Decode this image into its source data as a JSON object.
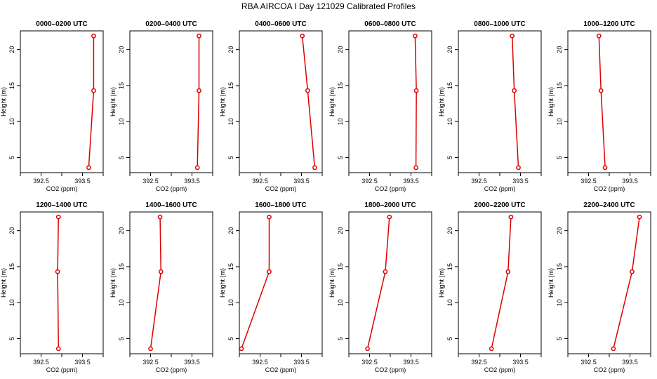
{
  "title": "RBA AIRCOA I  Day 121029  Calibrated Profiles",
  "chart_data": {
    "type": "line",
    "xlabel": "CO2 (ppm)",
    "ylabel": "Height (m)",
    "x_ticks": [
      "392.5",
      "393.5"
    ],
    "y_ticks": [
      "5",
      "10",
      "15",
      "20"
    ],
    "xlim": [
      392.0,
      394.0
    ],
    "ylim": [
      2.9,
      22.6
    ],
    "heights": [
      3.6,
      14.3,
      21.9
    ],
    "line_color": "#dd0000",
    "grid": false,
    "legend": "none",
    "panels": [
      {
        "title": "0000–0200 UTC",
        "xlim": [
          392.0,
          394.0
        ],
        "co2": [
          393.65,
          393.77,
          393.77
        ]
      },
      {
        "title": "0200–0400 UTC",
        "xlim": [
          392.0,
          394.0
        ],
        "co2": [
          393.63,
          393.67,
          393.67
        ]
      },
      {
        "title": "0400–0600 UTC",
        "xlim": [
          392.0,
          394.0
        ],
        "co2": [
          393.82,
          393.65,
          393.52
        ]
      },
      {
        "title": "0600–0800 UTC",
        "xlim": [
          392.0,
          394.0
        ],
        "co2": [
          393.62,
          393.63,
          393.6
        ]
      },
      {
        "title": "0800–1000 UTC",
        "xlim": [
          392.0,
          394.0
        ],
        "co2": [
          393.45,
          393.35,
          393.3
        ]
      },
      {
        "title": "1000–1200 UTC",
        "xlim": [
          392.0,
          394.0
        ],
        "co2": [
          392.9,
          392.8,
          392.75
        ]
      },
      {
        "title": "1200–1400 UTC",
        "xlim": [
          392.0,
          394.0
        ],
        "co2": [
          392.92,
          392.9,
          392.92
        ]
      },
      {
        "title": "1400–1600 UTC",
        "xlim": [
          392.0,
          394.0
        ],
        "co2": [
          392.5,
          392.75,
          392.73
        ]
      },
      {
        "title": "1600–1800 UTC",
        "xlim": [
          392.0,
          394.0
        ],
        "co2": [
          392.05,
          392.72,
          392.72
        ]
      },
      {
        "title": "1800–2000 UTC",
        "xlim": [
          392.0,
          394.0
        ],
        "co2": [
          392.45,
          392.88,
          392.98
        ]
      },
      {
        "title": "2000–2200 UTC",
        "xlim": [
          392.0,
          394.0
        ],
        "co2": [
          392.8,
          393.2,
          393.27
        ]
      },
      {
        "title": "2200–2400 UTC",
        "xlim": [
          392.0,
          394.0
        ],
        "co2": [
          393.1,
          393.55,
          393.73
        ]
      }
    ]
  }
}
